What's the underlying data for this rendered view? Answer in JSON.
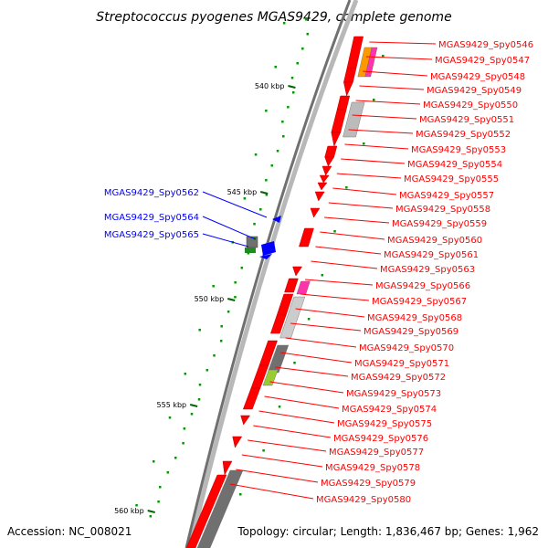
{
  "title": "Streptococcus pyogenes MGAS9429, complete genome",
  "footer": {
    "accession": "Accession: NC_008021",
    "summary": "Topology: circular; Length: 1,836,467 bp; Genes: 1,962"
  },
  "colors": {
    "forward": "#ff0000",
    "reverse": "#0000ff",
    "backbone": "#808080",
    "tick": "#006600",
    "dot": "#009900"
  },
  "ticks": [
    {
      "label": "540 kbp",
      "kbp": 540
    },
    {
      "label": "545 kbp",
      "kbp": 545
    },
    {
      "label": "550 kbp",
      "kbp": 550
    },
    {
      "label": "555 kbp",
      "kbp": 555
    },
    {
      "label": "560 kbp",
      "kbp": 560
    }
  ],
  "reverse_labels": [
    {
      "name": "MGAS9429_Spy0562"
    },
    {
      "name": "MGAS9429_Spy0564"
    },
    {
      "name": "MGAS9429_Spy0565"
    }
  ],
  "forward_labels": [
    {
      "name": "MGAS9429_Spy0546"
    },
    {
      "name": "MGAS9429_Spy0547"
    },
    {
      "name": "MGAS9429_Spy0548"
    },
    {
      "name": "MGAS9429_Spy0549"
    },
    {
      "name": "MGAS9429_Spy0550"
    },
    {
      "name": "MGAS9429_Spy0551"
    },
    {
      "name": "MGAS9429_Spy0552"
    },
    {
      "name": "MGAS9429_Spy0553"
    },
    {
      "name": "MGAS9429_Spy0554"
    },
    {
      "name": "MGAS9429_Spy0555"
    },
    {
      "name": "MGAS9429_Spy0557"
    },
    {
      "name": "MGAS9429_Spy0558"
    },
    {
      "name": "MGAS9429_Spy0559"
    },
    {
      "name": "MGAS9429_Spy0560"
    },
    {
      "name": "MGAS9429_Spy0561"
    },
    {
      "name": "MGAS9429_Spy0563"
    },
    {
      "name": "MGAS9429_Spy0566"
    },
    {
      "name": "MGAS9429_Spy0567"
    },
    {
      "name": "MGAS9429_Spy0568"
    },
    {
      "name": "MGAS9429_Spy0569"
    },
    {
      "name": "MGAS9429_Spy0570"
    },
    {
      "name": "MGAS9429_Spy0571"
    },
    {
      "name": "MGAS9429_Spy0572"
    },
    {
      "name": "MGAS9429_Spy0573"
    },
    {
      "name": "MGAS9429_Spy0574"
    },
    {
      "name": "MGAS9429_Spy0575"
    },
    {
      "name": "MGAS9429_Spy0576"
    },
    {
      "name": "MGAS9429_Spy0577"
    },
    {
      "name": "MGAS9429_Spy0578"
    },
    {
      "name": "MGAS9429_Spy0579"
    },
    {
      "name": "MGAS9429_Spy0580"
    }
  ]
}
